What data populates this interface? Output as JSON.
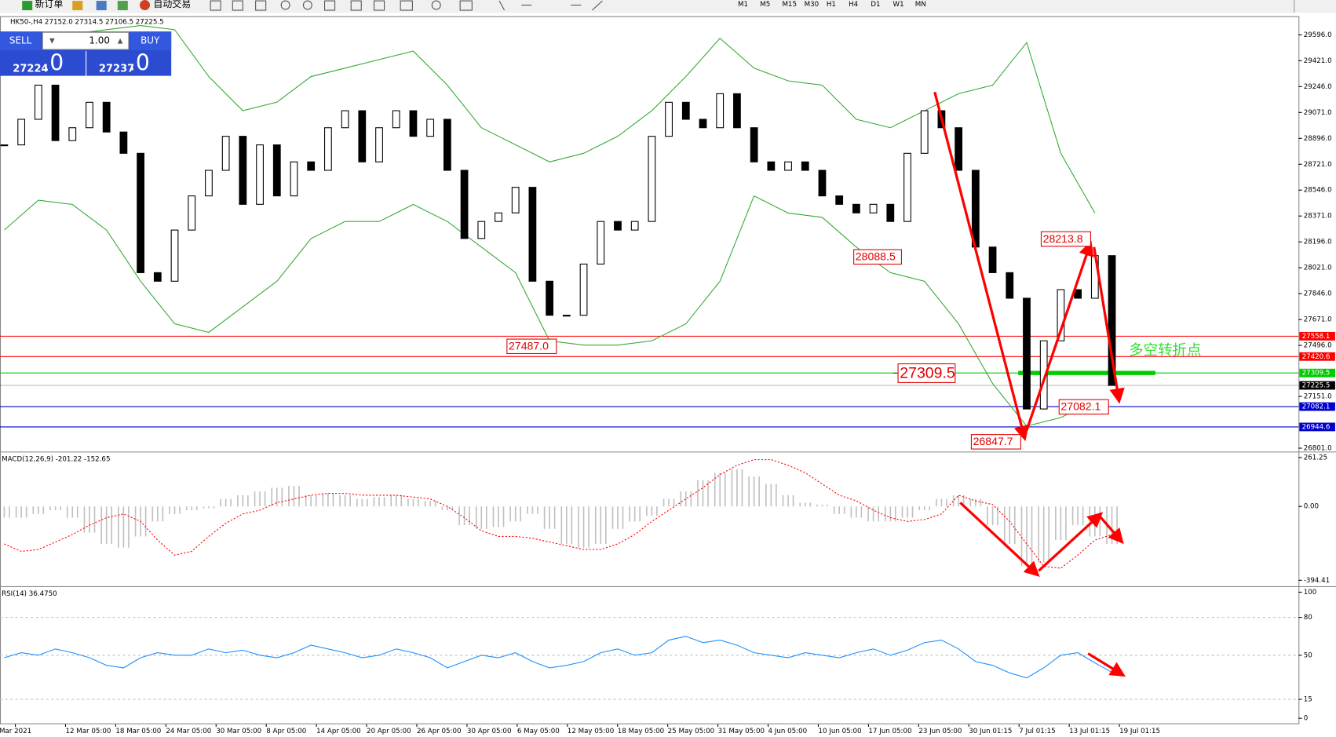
{
  "toolbar": {
    "new_order": "新订单",
    "auto_trading": "自动交易",
    "timeframes": [
      "M1",
      "M5",
      "M15",
      "M30",
      "H1",
      "H4",
      "D1",
      "W1",
      "MN"
    ]
  },
  "trade_panel": {
    "sell": "SELL",
    "buy": "BUY",
    "lots": "1.00",
    "sell_price": "27224",
    "sell_price_fraction": ".0",
    "buy_price": "27237",
    "buy_price_fraction": ".0"
  },
  "annotations": [
    {
      "value": 28213.8,
      "label": "28213.8"
    },
    {
      "value": 28088.5,
      "label": "28088.5"
    },
    {
      "value": 27487,
      "label": "27487.0"
    },
    {
      "value": 27309.5,
      "label": "27309.5"
    },
    {
      "value": 27082.1,
      "label": "27082.1"
    },
    {
      "value": 26847.7,
      "label": "26847.7"
    }
  ],
  "note": "多空转折点",
  "x_labels": [
    "Mar 2021",
    "12 Mar 05:00",
    "18 Mar 05:00",
    "24 Mar 05:00",
    "30 Mar 05:00",
    "8 Apr 05:00",
    "14 Apr 05:00",
    "20 Apr 05:00",
    "26 Apr 05:00",
    "30 Apr 05:00",
    "6 May 05:00",
    "12 May 05:00",
    "18 May 05:00",
    "25 May 05:00",
    "31 May 05:00",
    "4 Jun 05:00",
    "10 Jun 05:00",
    "17 Jun 05:00",
    "23 Jun 05:00",
    "30 Jun 01:15",
    "7 Jul 01:15",
    "13 Jul 01:15",
    "19 Jul 01:15"
  ],
  "chart_data": [
    {
      "type": "candlestick",
      "title": "HK50-,H4  27152.0 27314.5 27106.5 27225.5",
      "values": [
        28852,
        29025,
        29256,
        28881,
        28968,
        29140,
        28939,
        28795,
        27988,
        27930,
        28276,
        28507,
        28680,
        28910,
        28450,
        28852,
        28507,
        28737,
        28680,
        28968,
        29083,
        28737,
        28968,
        29083,
        28910,
        29025,
        28680,
        28219,
        28334,
        28392,
        28565,
        27930,
        27700,
        27700,
        28046,
        28334,
        28276,
        28334,
        28910,
        29140,
        29025,
        28968,
        29198,
        28968,
        28737,
        28680,
        28737,
        28680,
        28507,
        28450,
        28392,
        28450,
        28334,
        28795,
        29083,
        28968,
        28680,
        28161,
        27988,
        27815,
        27066,
        27527,
        27873,
        27815,
        28103,
        27225.5
      ],
      "band_color": "#33aa33",
      "upper_band": [
        29486,
        29544,
        29602,
        29631,
        29659,
        29631,
        29314,
        29083,
        29141,
        29314,
        29371,
        29429,
        29486,
        29256,
        28968,
        28853,
        28737,
        28795,
        28910,
        29083,
        29314,
        29573,
        29371,
        29285,
        29256,
        29025,
        28968,
        29083,
        29198,
        29256,
        29544,
        28795,
        28391
      ],
      "lower_band": [
        28276,
        28478,
        28449,
        28276,
        27930,
        27642,
        27584,
        27757,
        27930,
        28218,
        28334,
        28334,
        28449,
        28334,
        28161,
        27988,
        27527,
        27498,
        27498,
        27527,
        27642,
        27930,
        28507,
        28391,
        28362,
        28161,
        27988,
        27930,
        27642,
        27238,
        26950,
        27008,
        27123
      ],
      "ylim": [
        26778,
        29705
      ],
      "yticks": [
        {
          "value": 29596,
          "label": "29596.0"
        },
        {
          "value": 29421,
          "label": "29421.0"
        },
        {
          "value": 29246,
          "label": "29246.0"
        },
        {
          "value": 29071,
          "label": "29071.0"
        },
        {
          "value": 28896,
          "label": "28896.0"
        },
        {
          "value": 28721,
          "label": "28721.0"
        },
        {
          "value": 28546,
          "label": "28546.0"
        },
        {
          "value": 28371,
          "label": "28371.0"
        },
        {
          "value": 28196,
          "label": "28196.0"
        },
        {
          "value": 28021,
          "label": "28021.0"
        },
        {
          "value": 27846,
          "label": "27846.0"
        },
        {
          "value": 27671,
          "label": "27671.0"
        },
        {
          "value": 27496,
          "label": "27496.0"
        },
        {
          "value": 27151,
          "label": "27151.0"
        },
        {
          "value": 26801,
          "label": "26801.0"
        }
      ],
      "levels": [
        {
          "value": 27558.1,
          "color": "#ff0000"
        },
        {
          "value": 27420.6,
          "color": "#ff0000"
        },
        {
          "value": 27309.5,
          "color": "#00cc00"
        },
        {
          "value": 27225.5,
          "color": "#000000"
        },
        {
          "value": 27082.1,
          "color": "#0000cc"
        },
        {
          "value": 26944.6,
          "color": "#0000cc"
        }
      ]
    },
    {
      "type": "macd",
      "title": "MACD(12,26,9) -201.22 -152.65",
      "values": [
        -60,
        -60,
        -40,
        -20,
        -60,
        -140,
        -200,
        -220,
        -160,
        -80,
        -40,
        -20,
        -10,
        40,
        60,
        80,
        100,
        110,
        60,
        70,
        60,
        40,
        50,
        60,
        40,
        30,
        -20,
        -100,
        -120,
        -110,
        -80,
        -40,
        -120,
        -200,
        -220,
        -200,
        -120,
        -80,
        -50,
        40,
        80,
        140,
        180,
        200,
        160,
        120,
        60,
        20,
        10,
        -40,
        -60,
        -80,
        -80,
        -60,
        -20,
        40,
        60,
        40,
        -100,
        -200,
        -320,
        -300,
        -180,
        -100,
        -160,
        -200
      ],
      "signal": [
        -200,
        -240,
        -230,
        -190,
        -150,
        -100,
        -60,
        -40,
        -80,
        -180,
        -260,
        -240,
        -160,
        -90,
        -40,
        -20,
        20,
        40,
        60,
        70,
        70,
        60,
        60,
        60,
        50,
        40,
        0,
        -60,
        -130,
        -160,
        -160,
        -170,
        -190,
        -210,
        -230,
        -230,
        -200,
        -150,
        -80,
        -20,
        40,
        100,
        170,
        220,
        250,
        250,
        220,
        180,
        120,
        60,
        30,
        -20,
        -60,
        -80,
        -70,
        -40,
        60,
        30,
        10,
        -80,
        -200,
        -320,
        -330,
        -260,
        -180,
        -150
      ],
      "color": "#c0c0c0",
      "signal_color": "#ff0000",
      "ylim": [
        -426,
        284
      ],
      "yticks": [
        261.25,
        {
          "value": 0,
          "label": "0.00"
        },
        -394.41
      ]
    },
    {
      "type": "rsi",
      "title": "RSI(14) 36.4750",
      "values": [
        48,
        52,
        50,
        55,
        52,
        48,
        42,
        40,
        48,
        52,
        50,
        50,
        55,
        52,
        54,
        50,
        48,
        52,
        58,
        55,
        52,
        48,
        50,
        55,
        52,
        48,
        40,
        45,
        50,
        48,
        52,
        45,
        40,
        42,
        45,
        52,
        55,
        50,
        52,
        62,
        65,
        60,
        62,
        58,
        52,
        50,
        48,
        52,
        50,
        48,
        52,
        55,
        50,
        54,
        60,
        62,
        55,
        45,
        42,
        36,
        32,
        40,
        50,
        52,
        44,
        36.475
      ],
      "color": "#1e90ff",
      "ylim": [
        -4.7,
        103.4
      ],
      "yticks": [
        100,
        80,
        50,
        15,
        0
      ]
    }
  ]
}
